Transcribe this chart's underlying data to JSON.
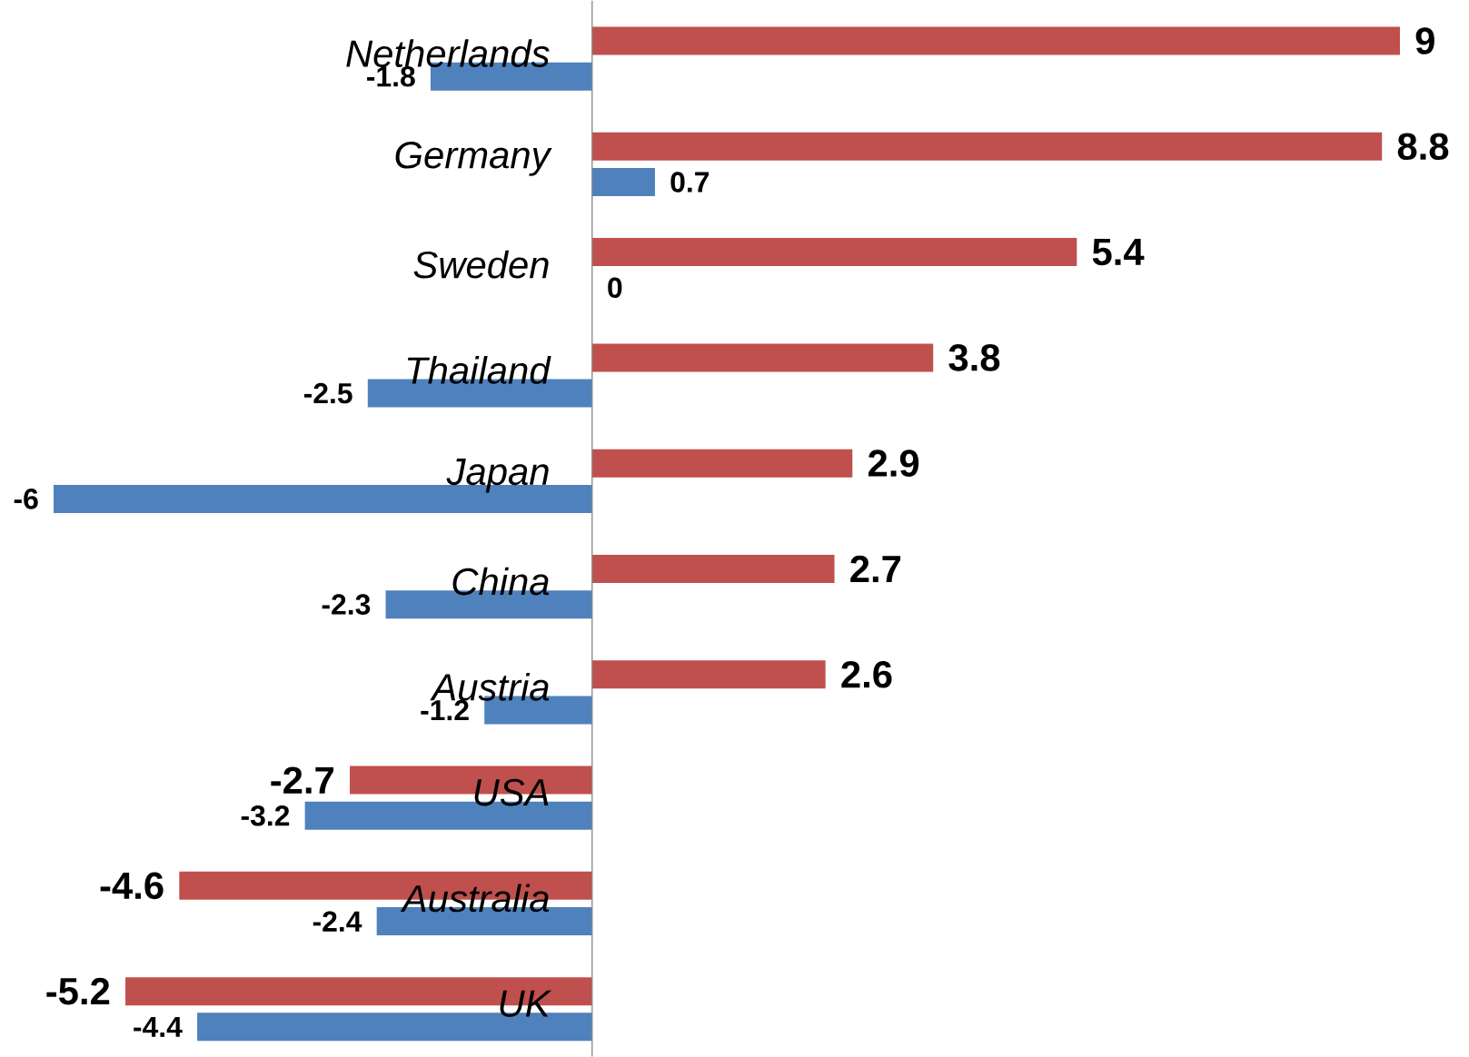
{
  "chart_data": {
    "type": "bar",
    "orientation": "horizontal",
    "categories": [
      "Netherlands",
      "Germany",
      "Sweden",
      "Thailand",
      "Japan",
      "China",
      "Austria",
      "USA",
      "Australia",
      "UK"
    ],
    "series": [
      {
        "color": "#c0504d",
        "values": [
          9,
          8.8,
          5.4,
          3.8,
          2.9,
          2.7,
          2.6,
          -2.7,
          -4.6,
          -5.2
        ]
      },
      {
        "color": "#4f81bd",
        "values": [
          -1.8,
          0.7,
          0,
          -2.5,
          -6,
          -2.3,
          -1.2,
          -3.2,
          -2.4,
          -4.4
        ]
      }
    ],
    "tick_labels": "y",
    "data_labels": true
  }
}
